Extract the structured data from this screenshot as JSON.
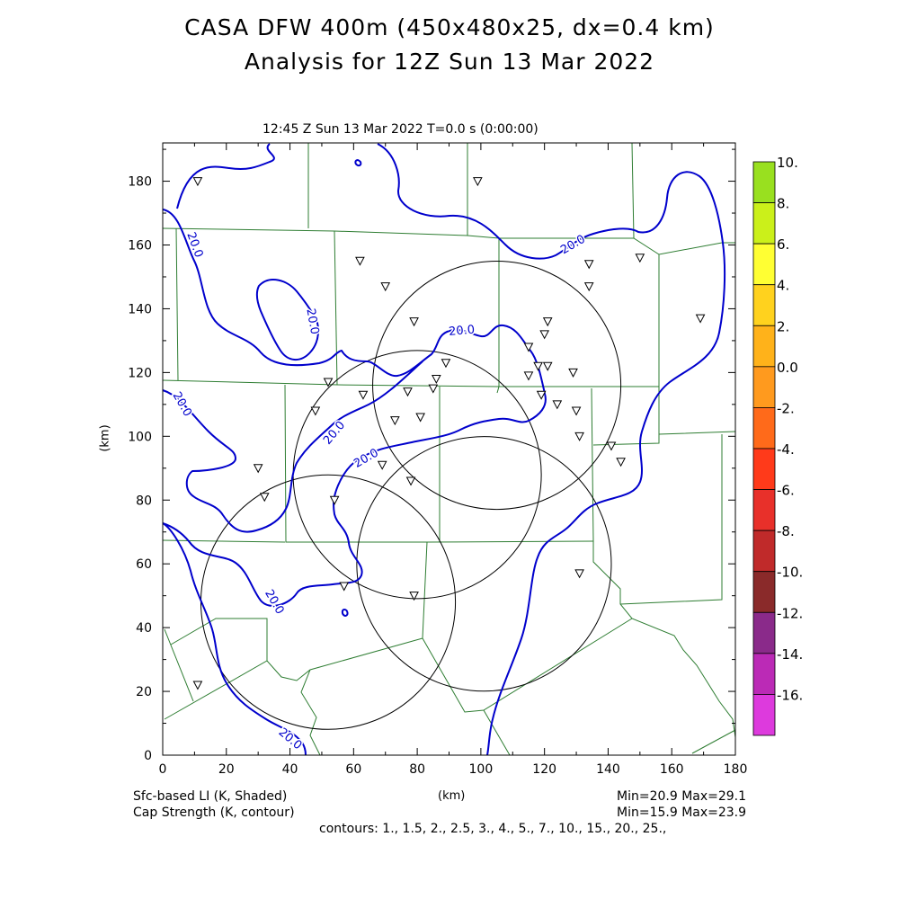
{
  "header": {
    "title_line1": "CASA DFW 400m (450x480x25, dx=0.4 km)",
    "title_line2": "Analysis for 12Z Sun 13 Mar 2022",
    "time_line": "12:45 Z Sun 13 Mar 2022    T=0.0 s (0:00:00)"
  },
  "footer": {
    "shaded_label": "Sfc-based LI (K, Shaded)",
    "contour_label": "Cap Strength (K, contour)",
    "shaded_minmax": "Min=20.9 Max=29.1",
    "contour_minmax": "Min=15.9 Max=23.9",
    "contours": "contours: 1., 1.5, 2., 2.5, 3., 4., 5., 7., 10., 15., 20., 25.,"
  },
  "chart_data": {
    "type": "contour map",
    "xlabel": "(km)",
    "ylabel": "(km)",
    "xlim": [
      0,
      180
    ],
    "ylim": [
      0,
      192
    ],
    "xticks": [
      "0",
      "20",
      "40",
      "60",
      "80",
      "100",
      "120",
      "140",
      "160",
      "180"
    ],
    "yticks": [
      "0",
      "20",
      "40",
      "60",
      "80",
      "100",
      "120",
      "140",
      "160",
      "180"
    ],
    "contour_color": "#0000cc",
    "boundary_color": "#2e7d32",
    "colorbar": {
      "labels": [
        "10.",
        "8.",
        "6.",
        "4.",
        "2.",
        "0.0",
        "-2.",
        "-4.",
        "-6.",
        "-8.",
        "-10.",
        "-12.",
        "-14.",
        "-16."
      ],
      "colors": [
        "#99e01f",
        "#cbf01a",
        "#ffff33",
        "#ffd21e",
        "#ffb21a",
        "#ff9a1e",
        "#ff6a1a",
        "#ff3a1a",
        "#e8302a",
        "#c02a2a",
        "#8a2a2a",
        "#8a2a8a",
        "#bb2ab6",
        "#dd3add"
      ]
    },
    "contour_labels": [
      {
        "text": "20.0",
        "x": 10,
        "y": 160,
        "rot": 70
      },
      {
        "text": "20.0",
        "x": 47,
        "y": 136,
        "rot": 80
      },
      {
        "text": "20.0",
        "x": 6,
        "y": 110,
        "rot": 60
      },
      {
        "text": "20.0",
        "x": 54,
        "y": 101,
        "rot": -50
      },
      {
        "text": "20.0",
        "x": 64,
        "y": 93,
        "rot": -30
      },
      {
        "text": "20.0",
        "x": 94,
        "y": 133,
        "rot": -5
      },
      {
        "text": "20.0",
        "x": 129,
        "y": 160,
        "rot": -30
      },
      {
        "text": "20.0",
        "x": 35,
        "y": 48,
        "rot": 60
      },
      {
        "text": "20.0",
        "x": 40,
        "y": 5,
        "rot": 40
      }
    ],
    "stations": [
      [
        11,
        180
      ],
      [
        99,
        180
      ],
      [
        62,
        155
      ],
      [
        70,
        147
      ],
      [
        79,
        136
      ],
      [
        121,
        136
      ],
      [
        134,
        154
      ],
      [
        134,
        147
      ],
      [
        150,
        156
      ],
      [
        169,
        137
      ],
      [
        120,
        132
      ],
      [
        115,
        128
      ],
      [
        52,
        117
      ],
      [
        63,
        113
      ],
      [
        77,
        114
      ],
      [
        86,
        118
      ],
      [
        89,
        123
      ],
      [
        85,
        115
      ],
      [
        118,
        122
      ],
      [
        121,
        122
      ],
      [
        115,
        119
      ],
      [
        129,
        120
      ],
      [
        119,
        113
      ],
      [
        124,
        110
      ],
      [
        130,
        108
      ],
      [
        131,
        100
      ],
      [
        141,
        97
      ],
      [
        144,
        92
      ],
      [
        48,
        108
      ],
      [
        73,
        105
      ],
      [
        81,
        106
      ],
      [
        69,
        91
      ],
      [
        78,
        86
      ],
      [
        30,
        90
      ],
      [
        32,
        81
      ],
      [
        54,
        80
      ],
      [
        57,
        53
      ],
      [
        131,
        57
      ],
      [
        79,
        50
      ],
      [
        11,
        22
      ]
    ],
    "range_rings": [
      {
        "cx": 105,
        "cy": 116,
        "r": 39
      },
      {
        "cx": 80,
        "cy": 88,
        "r": 39
      },
      {
        "cx": 101,
        "cy": 60,
        "r": 40
      },
      {
        "cx": 52,
        "cy": 48,
        "r": 40
      }
    ]
  }
}
